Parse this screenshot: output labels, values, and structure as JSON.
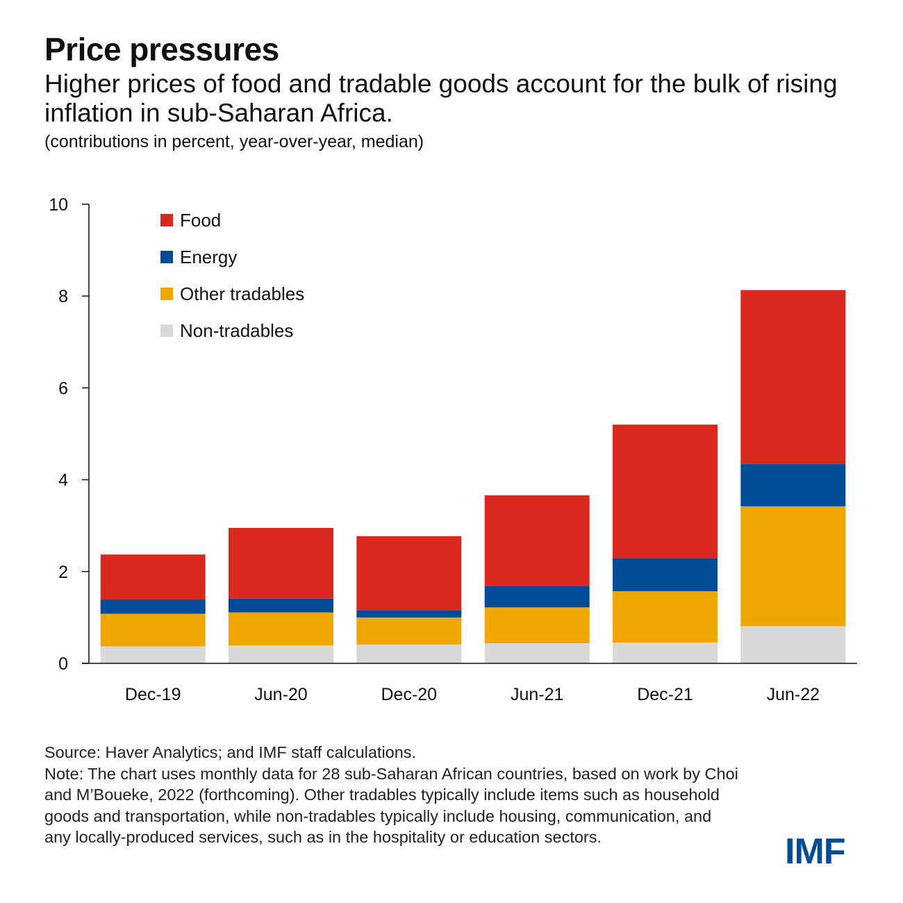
{
  "title": "Price pressures",
  "subtitle": "Higher prices of food and tradable goods account for the bulk of rising inflation in sub-Saharan Africa.",
  "units_note": "(contributions in percent, year-over-year, median)",
  "source": "Source: Haver Analytics; and IMF staff calculations.",
  "note": "Note: The chart uses monthly data for 28 sub-Saharan African countries, based on work by Choi and M’Boueke, 2022 (forthcoming). Other tradables typically include items such as household goods and transportation, while non-tradables typically include housing, communication, and any locally-produced services, such as in the hospitality or education sectors.",
  "logo": "IMF",
  "colors": {
    "Food": "#d9291e",
    "Energy": "#004c97",
    "Other tradables": "#f0a800",
    "Non-tradables": "#d9d9d9"
  },
  "chart_data": {
    "type": "bar",
    "stacked": true,
    "categories": [
      "Dec-19",
      "Jun-20",
      "Dec-20",
      "Jun-21",
      "Dec-21",
      "Jun-22"
    ],
    "series": [
      {
        "name": "Non-tradables",
        "values": [
          0.37,
          0.39,
          0.41,
          0.44,
          0.45,
          0.81
        ]
      },
      {
        "name": "Other tradables",
        "values": [
          0.71,
          0.72,
          0.59,
          0.78,
          1.12,
          2.61
        ]
      },
      {
        "name": "Energy",
        "values": [
          0.31,
          0.3,
          0.16,
          0.47,
          0.72,
          0.92
        ]
      },
      {
        "name": "Food",
        "values": [
          0.98,
          1.54,
          1.61,
          1.97,
          2.91,
          3.79
        ]
      }
    ],
    "legend_order": [
      "Food",
      "Energy",
      "Other tradables",
      "Non-tradables"
    ],
    "legend_position": "top-left",
    "yticks": [
      0,
      2,
      4,
      6,
      8,
      10
    ],
    "ylim": [
      0,
      10
    ],
    "grid": false
  }
}
